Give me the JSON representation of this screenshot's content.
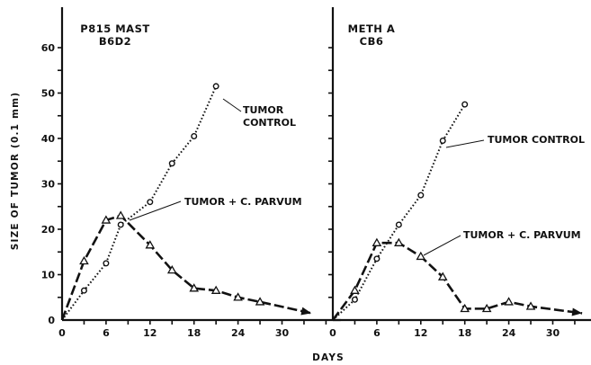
{
  "colors": {
    "ink": "#111111",
    "background": "#ffffff"
  },
  "chart_data": {
    "type": "line",
    "xlabel": "DAYS",
    "ylabel": "SIZE OF TUMOR (0.1 mm)",
    "grid": false,
    "panels": [
      {
        "title_line1": "P815 MAST",
        "title_line2": "B6D2",
        "xlim": [
          0,
          35
        ],
        "ylim": [
          0,
          65
        ],
        "xticks": [
          "0",
          "6",
          "12",
          "18",
          "24",
          "30"
        ],
        "yticks": [
          "0",
          "10",
          "20",
          "30",
          "40",
          "50",
          "60"
        ],
        "series": [
          {
            "marker": "circle",
            "line": "dotted",
            "label_line1": "TUMOR",
            "label_line2": "CONTROL",
            "x": [
              0,
              3,
              6,
              8,
              12,
              15,
              18,
              21
            ],
            "y": [
              0,
              6.5,
              12.5,
              21,
              26,
              34.5,
              40.5,
              51.5
            ]
          },
          {
            "marker": "triangle",
            "line": "dashed",
            "label": "TUMOR + C. PARVUM",
            "x": [
              0,
              3,
              6,
              8,
              12,
              15,
              18,
              21,
              24,
              27,
              34
            ],
            "y": [
              0,
              13,
              22,
              23,
              16.5,
              11,
              7,
              6.5,
              5,
              4,
              1.5
            ]
          }
        ]
      },
      {
        "title_line1": "METH A",
        "title_line2": "CB6",
        "xlim": [
          0,
          35
        ],
        "ylim": [
          0,
          65
        ],
        "xticks": [
          "0",
          "6",
          "12",
          "18",
          "24",
          "30"
        ],
        "yticks": [],
        "series": [
          {
            "marker": "circle",
            "line": "dotted",
            "label": "TUMOR CONTROL",
            "x": [
              0,
              3,
              6,
              9,
              12,
              15,
              18
            ],
            "y": [
              0,
              4.5,
              13.5,
              21,
              27.5,
              39.5,
              47.5
            ]
          },
          {
            "marker": "triangle",
            "line": "dashed",
            "label": "TUMOR + C. PARVUM",
            "x": [
              0,
              3,
              6,
              9,
              12,
              15,
              18,
              21,
              24,
              27,
              34
            ],
            "y": [
              0,
              6.5,
              17,
              17,
              14,
              9.5,
              2.5,
              2.5,
              4,
              3,
              1.5
            ]
          }
        ]
      }
    ]
  }
}
